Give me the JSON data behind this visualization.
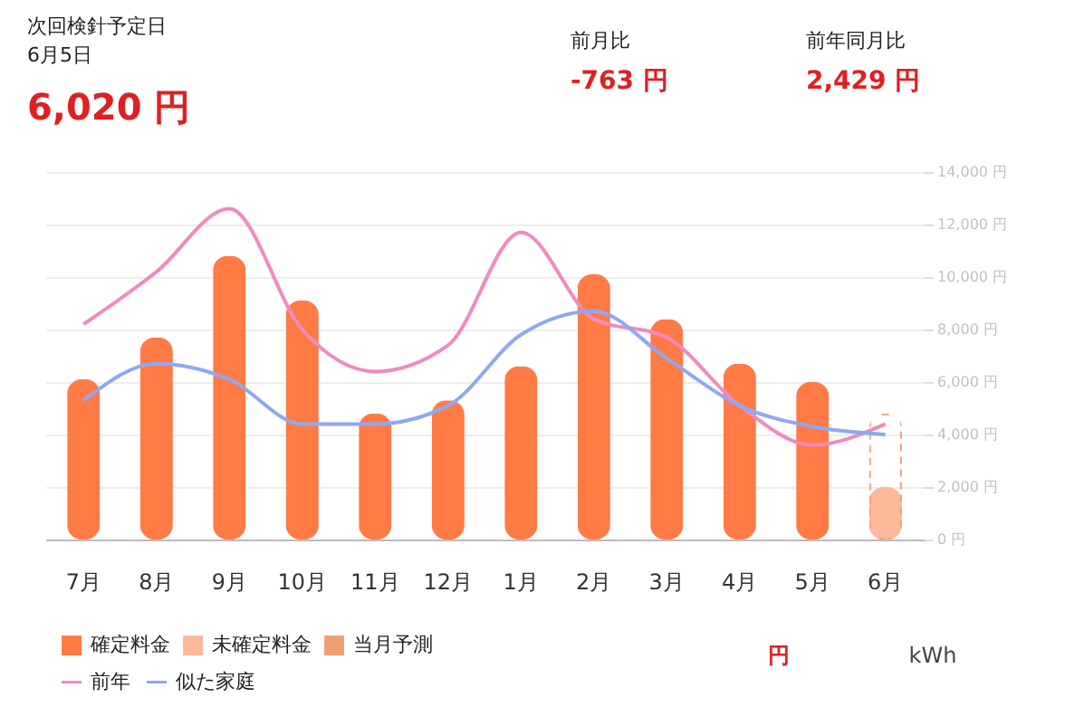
{
  "chart_data": {
    "type": "bar",
    "categories": [
      "7月",
      "8月",
      "9月",
      "10月",
      "11月",
      "12月",
      "1月",
      "2月",
      "3月",
      "4月",
      "5月",
      "6月"
    ],
    "series": [
      {
        "name": "確定料金",
        "type": "bar",
        "color": "#ff7a45",
        "values": [
          6100,
          7700,
          10800,
          9100,
          4800,
          5300,
          6600,
          10100,
          8400,
          6700,
          6000,
          null
        ]
      },
      {
        "name": "未確定料金",
        "type": "bar",
        "color": "#fbb999",
        "values": [
          null,
          null,
          null,
          null,
          null,
          null,
          null,
          null,
          null,
          null,
          null,
          2000
        ]
      },
      {
        "name": "当月予測",
        "type": "bar",
        "color": "#f0a070",
        "line_style": "dashed",
        "values": [
          null,
          null,
          null,
          null,
          null,
          null,
          null,
          null,
          null,
          null,
          null,
          4800
        ]
      },
      {
        "name": "前年",
        "type": "line",
        "color": "#f08ac0",
        "values": [
          8200,
          10200,
          12600,
          8000,
          6400,
          7400,
          11700,
          8400,
          7700,
          5100,
          3600,
          4400
        ]
      },
      {
        "name": "似た家庭",
        "type": "line",
        "color": "#8fa8f0",
        "values": [
          5300,
          6700,
          6100,
          4400,
          4400,
          5100,
          7800,
          8700,
          6900,
          5100,
          4300,
          4000
        ]
      }
    ],
    "ylim": [
      0,
      14000
    ],
    "yticks": [
      {
        "value": 0,
        "label": "0 円"
      },
      {
        "value": 2000,
        "label": "2,000 円"
      },
      {
        "value": 4000,
        "label": "4,000 円"
      },
      {
        "value": 6000,
        "label": "6,000 円"
      },
      {
        "value": 8000,
        "label": "8,000 円"
      },
      {
        "value": 10000,
        "label": "10,000 円"
      },
      {
        "value": 12000,
        "label": "12,000 円"
      },
      {
        "value": 14000,
        "label": "14,000 円"
      }
    ],
    "grid": "y",
    "legend": "bottom left",
    "annotations": [
      "次回検針予定日",
      "6月5日",
      "6,020 円",
      "前月比",
      "-763 円",
      "前年同月比",
      "2,429 円",
      "円",
      "kWh"
    ]
  }
}
